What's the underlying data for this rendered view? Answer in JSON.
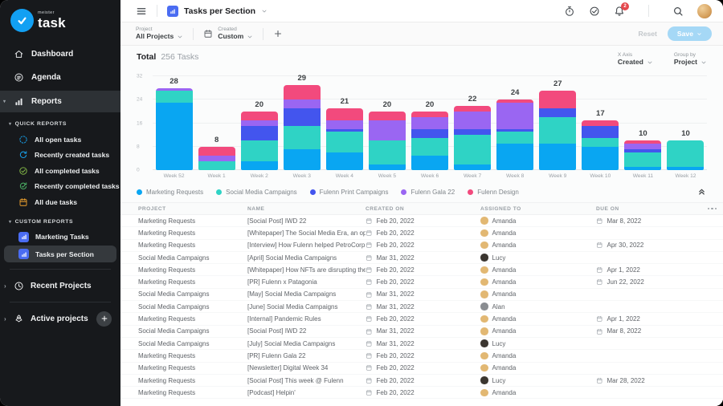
{
  "app": {
    "brand_small": "meister",
    "brand": "task"
  },
  "sidebar": {
    "items": [
      {
        "label": "Dashboard",
        "icon": "home",
        "selected": false
      },
      {
        "label": "Agenda",
        "icon": "agenda",
        "selected": false
      },
      {
        "label": "Reports",
        "icon": "reports",
        "selected": true
      }
    ],
    "quick_reports": {
      "title": "QUICK REPORTS",
      "items": [
        {
          "label": "All open tasks",
          "icon": "open-circle",
          "color": "#18a7f3"
        },
        {
          "label": "Recently created tasks",
          "icon": "refresh",
          "color": "#18a7f3"
        },
        {
          "label": "All completed tasks",
          "icon": "check-circle",
          "color": "#8bc34a"
        },
        {
          "label": "Recently completed tasks",
          "icon": "refresh-check",
          "color": "#4db667"
        },
        {
          "label": "All due tasks",
          "icon": "calendar",
          "color": "#f0a22e"
        }
      ]
    },
    "custom_reports": {
      "title": "CUSTOM REPORTS",
      "items": [
        {
          "label": "Marketing Tasks",
          "selected": false
        },
        {
          "label": "Tasks per Section",
          "selected": true
        }
      ],
      "icon_color": "#4a6cf2"
    },
    "recent_projects_label": "Recent Projects",
    "active_projects_label": "Active projects"
  },
  "header": {
    "title": "Tasks per Section",
    "notification_count": "2"
  },
  "filter_bar": {
    "project_label": "Project",
    "project_value": "All Projects",
    "created_label": "Created",
    "created_value": "Custom",
    "reset_label": "Reset",
    "save_label": "Save"
  },
  "summary": {
    "total_label": "Total",
    "total_value": "256 Tasks",
    "x_axis_label": "X Axis",
    "x_axis_value": "Created",
    "group_by_label": "Group by",
    "group_by_value": "Project"
  },
  "chart_data": {
    "type": "bar",
    "stacked": true,
    "title": "Tasks per Section",
    "categories": [
      "Week 52",
      "Week 1",
      "Week 2",
      "Week 3",
      "Week 4",
      "Week 5",
      "Week 6",
      "Week 7",
      "Week 8",
      "Week 9",
      "Week 10",
      "Week 11",
      "Week 12"
    ],
    "totals": [
      28,
      8,
      20,
      29,
      21,
      20,
      20,
      22,
      24,
      27,
      17,
      10,
      10
    ],
    "series": [
      {
        "name": "Marketing Requests",
        "color": "#09a6f2",
        "values": [
          23,
          0,
          3,
          7,
          6,
          2,
          5,
          2,
          9,
          9,
          8,
          1,
          1
        ]
      },
      {
        "name": "Social Media Campaigns",
        "color": "#2fd3c5",
        "values": [
          4,
          3,
          7,
          8,
          7,
          8,
          6,
          10,
          4,
          9,
          3,
          5,
          9
        ]
      },
      {
        "name": "Fulenn Print Campaigns",
        "color": "#4355ee",
        "values": [
          0,
          0,
          5,
          6,
          1,
          0,
          3,
          2,
          1,
          3,
          4,
          1,
          0
        ]
      },
      {
        "name": "Fulenn Gala 22",
        "color": "#9a66f2",
        "values": [
          1,
          2,
          2,
          3,
          3,
          7,
          4,
          6,
          9,
          0,
          0,
          2,
          0
        ]
      },
      {
        "name": "Fulenn Design",
        "color": "#f24a7d",
        "values": [
          0,
          3,
          3,
          5,
          4,
          3,
          2,
          2,
          1,
          6,
          2,
          1,
          0
        ]
      }
    ],
    "ylim": [
      0,
      32
    ],
    "yticks": [
      0,
      8,
      16,
      24,
      32
    ],
    "legend_position": "bottom",
    "grid": true
  },
  "table": {
    "columns": [
      "PROJECT",
      "NAME",
      "CREATED ON",
      "ASSIGNED TO",
      "DUE ON"
    ],
    "people": {
      "Amanda": "#e2b873",
      "Lucy": "#3b3630",
      "Alan": "#8a8d91"
    },
    "rows": [
      {
        "project": "Marketing Requests",
        "name": "[Social Post] IWD 22",
        "created": "Feb 20, 2022",
        "assigned": "Amanda",
        "due": "Mar 8, 2022"
      },
      {
        "project": "Marketing Requests",
        "name": "[Whitepaper] The Social Media Era, an oppo…",
        "created": "Feb 20, 2022",
        "assigned": "Amanda",
        "due": ""
      },
      {
        "project": "Marketing Requests",
        "name": "[Interview] How Fulenn helped PetroCorp wi…",
        "created": "Feb 20, 2022",
        "assigned": "Amanda",
        "due": "Apr 30, 2022"
      },
      {
        "project": "Social Media Campaigns",
        "name": "[April] Social Media Campaigns",
        "created": "Mar 31, 2022",
        "assigned": "Lucy",
        "due": ""
      },
      {
        "project": "Marketing Requests",
        "name": "[Whitepaper] How NFTs are disrupting the a…",
        "created": "Feb 20, 2022",
        "assigned": "Amanda",
        "due": "Apr 1, 2022"
      },
      {
        "project": "Marketing Requests",
        "name": "[PR] Fulenn x Patagonia",
        "created": "Feb 20, 2022",
        "assigned": "Amanda",
        "due": "Jun 22, 2022"
      },
      {
        "project": "Social Media Campaigns",
        "name": "[May] Social Media Campaigns",
        "created": "Mar 31, 2022",
        "assigned": "Amanda",
        "due": ""
      },
      {
        "project": "Social Media Campaigns",
        "name": "[June] Social Media Campaigns",
        "created": "Mar 31, 2022",
        "assigned": "Alan",
        "due": ""
      },
      {
        "project": "Marketing Requests",
        "name": "[Internal] Pandemic Rules",
        "created": "Feb 20, 2022",
        "assigned": "Amanda",
        "due": "Apr 1, 2022"
      },
      {
        "project": "Social Media Campaigns",
        "name": "[Social Post] IWD 22",
        "created": "Mar 31, 2022",
        "assigned": "Amanda",
        "due": "Mar 8, 2022"
      },
      {
        "project": "Social Media Campaigns",
        "name": "[July] Social Media Campaigns",
        "created": "Mar 31, 2022",
        "assigned": "Lucy",
        "due": ""
      },
      {
        "project": "Marketing Requests",
        "name": "[PR] Fulenn Gala 22",
        "created": "Feb 20, 2022",
        "assigned": "Amanda",
        "due": ""
      },
      {
        "project": "Marketing Requests",
        "name": "[Newsletter] Digital Week 34",
        "created": "Feb 20, 2022",
        "assigned": "Amanda",
        "due": ""
      },
      {
        "project": "Marketing Requests",
        "name": "[Social Post] This week @ Fulenn",
        "created": "Feb 20, 2022",
        "assigned": "Lucy",
        "due": "Mar 28, 2022"
      },
      {
        "project": "Marketing Requests",
        "name": "[Podcast] Helpin'",
        "created": "Feb 20, 2022",
        "assigned": "Amanda",
        "due": ""
      }
    ]
  }
}
